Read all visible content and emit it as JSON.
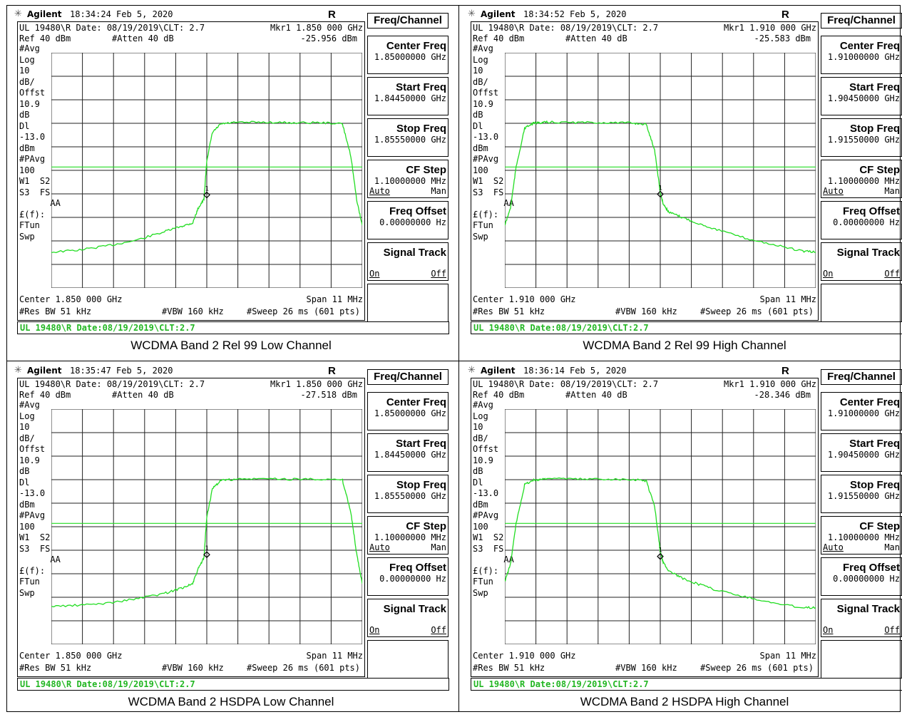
{
  "colors": {
    "trace": "#22dd22",
    "grid": "#222222",
    "status_text": "#22b622",
    "background": "#ffffff"
  },
  "panels": [
    {
      "brand": "Agilent",
      "timestamp": "18:34:24  Feb 5, 2020",
      "rt": "R  T",
      "header_line": "UL 19480\\R Date: 08/19/2019\\CLT: 2.7",
      "marker_label": "Mkr1  1.850 000 GHz",
      "marker_value": "-25.956 dBm",
      "ref": "Ref 40 dBm",
      "atten": "#Atten 40 dB",
      "left_labels": "#Avg\nLog\n10\ndB/\nOffst\n10.9\ndB\nDl\n-13.0\ndBm\n#PAvg\n100\nW1  S2\nS3  FS\n      AA\n£(f):\nFTun\nSwp",
      "center": "Center 1.850 000 GHz",
      "span": "Span 11 MHz",
      "res_bw": "#Res BW 51 kHz",
      "vbw": "#VBW 160 kHz",
      "sweep": "#Sweep 26 ms (601 pts)",
      "status": "UL 19480\\R Date:08/19/2019\\CLT:2.7",
      "caption": "WCDMA Band 2 Rel 99 Low Channel",
      "softkey_title": "Freq/Channel",
      "softkeys": [
        {
          "label": "Center Freq",
          "value": "1.85000000 GHz"
        },
        {
          "label": "Start Freq",
          "value": "1.84450000 GHz"
        },
        {
          "label": "Stop Freq",
          "value": "1.85550000 GHz"
        },
        {
          "label": "CF Step",
          "value": "1.10000000 MHz",
          "sub_l": "Auto",
          "sub_r": "Man"
        },
        {
          "label": "Freq Offset",
          "value": "0.00000000  Hz"
        },
        {
          "label": "Signal Track",
          "value": "",
          "sub_l": "On",
          "sub_r": "Off"
        },
        {
          "label": "",
          "value": ""
        }
      ]
    },
    {
      "brand": "Agilent",
      "timestamp": "18:34:52  Feb 5, 2020",
      "rt": "R  T",
      "header_line": "UL 19480\\R Date: 08/19/2019\\CLT: 2.7",
      "marker_label": "Mkr1  1.910 000 GHz",
      "marker_value": "-25.583 dBm",
      "ref": "Ref 40 dBm",
      "atten": "#Atten 40 dB",
      "left_labels": "#Avg\nLog\n10\ndB/\nOffst\n10.9\ndB\nDl\n-13.0\ndBm\n#PAvg\n100\nW1  S2\nS3  FS\n      AA\n£(f):\nFTun\nSwp",
      "center": "Center 1.910 000 GHz",
      "span": "Span 11 MHz",
      "res_bw": "#Res BW 51 kHz",
      "vbw": "#VBW 160 kHz",
      "sweep": "#Sweep 26 ms (601 pts)",
      "status": "UL 19480\\R Date:08/19/2019\\CLT:2.7",
      "caption": "WCDMA Band 2 Rel 99 High Channel",
      "softkey_title": "Freq/Channel",
      "softkeys": [
        {
          "label": "Center Freq",
          "value": "1.91000000 GHz"
        },
        {
          "label": "Start Freq",
          "value": "1.90450000 GHz"
        },
        {
          "label": "Stop Freq",
          "value": "1.91550000 GHz"
        },
        {
          "label": "CF Step",
          "value": "1.10000000 MHz",
          "sub_l": "Auto",
          "sub_r": "Man"
        },
        {
          "label": "Freq Offset",
          "value": "0.00000000  Hz"
        },
        {
          "label": "Signal Track",
          "value": "",
          "sub_l": "On",
          "sub_r": "Off"
        },
        {
          "label": "",
          "value": ""
        }
      ]
    },
    {
      "brand": "Agilent",
      "timestamp": "18:35:47  Feb 5, 2020",
      "rt": "R  T",
      "header_line": "UL 19480\\R Date: 08/19/2019\\CLT: 2.7",
      "marker_label": "Mkr1  1.850 000 GHz",
      "marker_value": "-27.518 dBm",
      "ref": "Ref 40 dBm",
      "atten": "#Atten 40 dB",
      "left_labels": "#Avg\nLog\n10\ndB/\nOffst\n10.9\ndB\nDl\n-13.0\ndBm\n#PAvg\n100\nW1  S2\nS3  FS\n      AA\n£(f):\nFTun\nSwp",
      "center": "Center 1.850 000 GHz",
      "span": "Span 11 MHz",
      "res_bw": "#Res BW 51 kHz",
      "vbw": "#VBW 160 kHz",
      "sweep": "#Sweep 26 ms (601 pts)",
      "status": "UL 19480\\R Date:08/19/2019\\CLT:2.7",
      "caption": "WCDMA Band 2 HSDPA Low Channel",
      "softkey_title": "Freq/Channel",
      "softkeys": [
        {
          "label": "Center Freq",
          "value": "1.85000000 GHz"
        },
        {
          "label": "Start Freq",
          "value": "1.84450000 GHz"
        },
        {
          "label": "Stop Freq",
          "value": "1.85550000 GHz"
        },
        {
          "label": "CF Step",
          "value": "1.10000000 MHz",
          "sub_l": "Auto",
          "sub_r": "Man"
        },
        {
          "label": "Freq Offset",
          "value": "0.00000000  Hz"
        },
        {
          "label": "Signal Track",
          "value": "",
          "sub_l": "On",
          "sub_r": "Off"
        },
        {
          "label": "",
          "value": ""
        }
      ]
    },
    {
      "brand": "Agilent",
      "timestamp": "18:36:14  Feb 5, 2020",
      "rt": "R  T",
      "header_line": "UL 19480\\R Date: 08/19/2019\\CLT: 2.7",
      "marker_label": "Mkr1  1.910 000 GHz",
      "marker_value": "-28.346 dBm",
      "ref": "Ref 40 dBm",
      "atten": "#Atten 40 dB",
      "left_labels": "#Avg\nLog\n10\ndB/\nOffst\n10.9\ndB\nDl\n-13.0\ndBm\n#PAvg\n100\nW1  S2\nS3  FS\n      AA\n£(f):\nFTun\nSwp",
      "center": "Center 1.910 000 GHz",
      "span": "Span 11 MHz",
      "res_bw": "#Res BW 51 kHz",
      "vbw": "#VBW 160 kHz",
      "sweep": "#Sweep 26 ms (601 pts)",
      "status": "UL 19480\\R Date:08/19/2019\\CLT:2.7",
      "caption": "WCDMA Band 2 HSDPA High Channel",
      "softkey_title": "Freq/Channel",
      "softkeys": [
        {
          "label": "Center Freq",
          "value": "1.91000000 GHz"
        },
        {
          "label": "Start Freq",
          "value": "1.90450000 GHz"
        },
        {
          "label": "Stop Freq",
          "value": "1.91550000 GHz"
        },
        {
          "label": "CF Step",
          "value": "1.10000000 MHz",
          "sub_l": "Auto",
          "sub_r": "Man"
        },
        {
          "label": "Freq Offset",
          "value": "0.00000000  Hz"
        },
        {
          "label": "Signal Track",
          "value": "",
          "sub_l": "On",
          "sub_r": "Off"
        },
        {
          "label": "",
          "value": ""
        }
      ]
    }
  ],
  "chart_data": [
    {
      "type": "line",
      "xlim": [
        1.8445,
        1.8555
      ],
      "ylim": [
        -69.1,
        40
      ],
      "display_line": -13.0,
      "grid": true,
      "series": [
        {
          "x": [
            1.8445,
            1.8455,
            1.8465,
            1.8475,
            1.8485,
            1.8491,
            1.8495,
            1.8497,
            1.8499,
            1.85,
            1.8502,
            1.8505,
            1.851,
            1.852,
            1.853,
            1.854,
            1.8548,
            1.8551,
            1.8553,
            1.8555
          ],
          "y": [
            -52.5,
            -51.5,
            -49.5,
            -47,
            -43,
            -40.5,
            -39,
            -32,
            -28,
            -10,
            3,
            7,
            7.6,
            7.8,
            7.5,
            7.6,
            7.0,
            -8,
            -28,
            -40
          ]
        }
      ],
      "marker": {
        "x": 1.85,
        "y": -25.956
      }
    },
    {
      "type": "line",
      "xlim": [
        1.9045,
        1.9155
      ],
      "ylim": [
        -69.1,
        40
      ],
      "display_line": -13.0,
      "grid": true,
      "series": [
        {
          "x": [
            1.9045,
            1.9047,
            1.9049,
            1.9052,
            1.9055,
            1.9058,
            1.906,
            1.907,
            1.908,
            1.909,
            1.9095,
            1.9098,
            1.91,
            1.9101,
            1.9103,
            1.9107,
            1.9113,
            1.912,
            1.913,
            1.914,
            1.915,
            1.9155
          ],
          "y": [
            -40,
            -32,
            -13,
            5,
            7.2,
            7.6,
            7.8,
            7.6,
            7.6,
            7.4,
            6.8,
            -5,
            -25,
            -30,
            -34,
            -36,
            -39,
            -42,
            -46,
            -49,
            -52,
            -52.5
          ]
        }
      ],
      "marker": {
        "x": 1.91,
        "y": -25.583
      }
    },
    {
      "type": "line",
      "xlim": [
        1.8445,
        1.8555
      ],
      "ylim": [
        -69.1,
        40
      ],
      "display_line": -13.0,
      "grid": true,
      "series": [
        {
          "x": [
            1.8445,
            1.8455,
            1.8465,
            1.8475,
            1.8485,
            1.8491,
            1.8495,
            1.8497,
            1.8499,
            1.85,
            1.8502,
            1.8505,
            1.851,
            1.852,
            1.853,
            1.854,
            1.8548,
            1.8551,
            1.8553,
            1.8555
          ],
          "y": [
            -51.5,
            -51,
            -50,
            -48,
            -45.5,
            -43,
            -41,
            -34,
            -29,
            -10,
            3,
            7,
            7.4,
            7.7,
            7.5,
            7.6,
            7.0,
            -8,
            -27,
            -41
          ]
        }
      ],
      "marker": {
        "x": 1.85,
        "y": -27.518
      }
    },
    {
      "type": "line",
      "xlim": [
        1.9045,
        1.9155
      ],
      "ylim": [
        -69.1,
        40
      ],
      "display_line": -13.0,
      "grid": true,
      "series": [
        {
          "x": [
            1.9045,
            1.9047,
            1.9049,
            1.9052,
            1.9055,
            1.9058,
            1.906,
            1.907,
            1.908,
            1.909,
            1.9095,
            1.9098,
            1.91,
            1.9101,
            1.9103,
            1.9107,
            1.9113,
            1.912,
            1.913,
            1.914,
            1.915,
            1.9155
          ],
          "y": [
            -40,
            -32,
            -13,
            5,
            7.0,
            7.5,
            7.9,
            7.5,
            7.6,
            7.4,
            6.8,
            -5,
            -26,
            -31,
            -35,
            -38,
            -41,
            -44,
            -47,
            -50,
            -52,
            -52
          ]
        }
      ],
      "marker": {
        "x": 1.91,
        "y": -28.346
      }
    }
  ]
}
